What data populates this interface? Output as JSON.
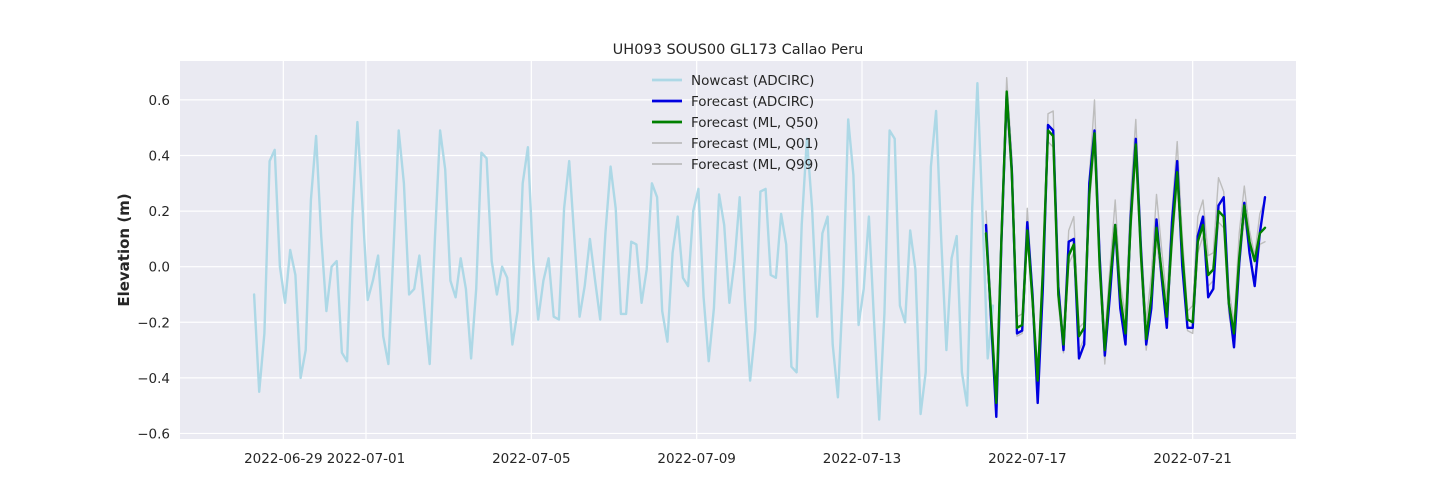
{
  "chart_data": {
    "type": "line",
    "title": "UH093 SOUS00 GL173 Callao Peru",
    "xlabel": "",
    "ylabel": "Elevation (m)",
    "xlim": [
      "2022-06-26T12:00",
      "2022-07-23T12:00"
    ],
    "ylim": [
      -0.62,
      0.74
    ],
    "grid": true,
    "legend_position": "top-center",
    "xticks": [
      "2022-06-29",
      "2022-07-01",
      "2022-07-05",
      "2022-07-09",
      "2022-07-13",
      "2022-07-17",
      "2022-07-21"
    ],
    "yticks": [
      -0.6,
      -0.4,
      -0.2,
      0.0,
      0.2,
      0.4,
      0.6
    ],
    "ytick_labels": [
      "−0.6",
      "−0.4",
      "−0.2",
      "0.0",
      "0.2",
      "0.4",
      "0.6"
    ],
    "series": [
      {
        "name": "Nowcast (ADCIRC)",
        "color": "#add8e6",
        "width": 2.4,
        "start": "2022-06-28T07:00",
        "step_hours": 3,
        "values": [
          -0.1,
          -0.45,
          -0.24,
          0.38,
          0.42,
          0.0,
          -0.13,
          0.06,
          -0.03,
          -0.4,
          -0.3,
          0.24,
          0.47,
          0.11,
          -0.16,
          0.0,
          0.02,
          -0.31,
          -0.34,
          0.17,
          0.52,
          0.21,
          -0.12,
          -0.05,
          0.04,
          -0.25,
          -0.35,
          0.07,
          0.49,
          0.3,
          -0.1,
          -0.08,
          0.04,
          -0.16,
          -0.35,
          0.1,
          0.49,
          0.35,
          -0.05,
          -0.11,
          0.03,
          -0.08,
          -0.33,
          -0.08,
          0.41,
          0.39,
          0.02,
          -0.1,
          0.0,
          -0.04,
          -0.28,
          -0.16,
          0.3,
          0.43,
          0.02,
          -0.19,
          -0.05,
          0.03,
          -0.18,
          -0.19,
          0.21,
          0.38,
          0.1,
          -0.18,
          -0.07,
          0.1,
          -0.05,
          -0.19,
          0.12,
          0.36,
          0.21,
          -0.17,
          -0.17,
          0.09,
          0.08,
          -0.13,
          -0.01,
          0.3,
          0.25,
          -0.16,
          -0.27,
          0.05,
          0.18,
          -0.04,
          -0.07,
          0.2,
          0.28,
          -0.11,
          -0.34,
          -0.15,
          0.26,
          0.15,
          -0.13,
          0.02,
          0.25,
          -0.12,
          -0.41,
          -0.23,
          0.27,
          0.28,
          -0.03,
          -0.04,
          0.19,
          0.08,
          -0.36,
          -0.38,
          0.15,
          0.46,
          0.21,
          -0.18,
          0.12,
          0.18,
          -0.28,
          -0.47,
          -0.07,
          0.53,
          0.33,
          -0.21,
          -0.08,
          0.18,
          -0.2,
          -0.55,
          -0.17,
          0.49,
          0.46,
          -0.14,
          -0.2,
          0.13,
          -0.01,
          -0.53,
          -0.38,
          0.36,
          0.56,
          0.1,
          -0.3,
          0.03,
          0.11,
          -0.38,
          -0.5,
          0.21,
          0.66,
          0.18,
          -0.33,
          -0.14
        ]
      },
      {
        "name": "Forecast (ADCIRC)",
        "color": "#0000e0",
        "width": 2.4,
        "start": "2022-07-16T00:00",
        "step_hours": 3,
        "values": [
          0.15,
          -0.2,
          -0.54,
          0.1,
          0.62,
          0.35,
          -0.24,
          -0.23,
          0.16,
          -0.1,
          -0.49,
          -0.08,
          0.51,
          0.49,
          -0.07,
          -0.3,
          0.09,
          0.1,
          -0.33,
          -0.28,
          0.3,
          0.49,
          0.03,
          -0.32,
          -0.1,
          0.15,
          -0.15,
          -0.28,
          0.18,
          0.46,
          0.06,
          -0.28,
          -0.15,
          0.17,
          -0.04,
          -0.22,
          0.16,
          0.38,
          0.0,
          -0.22,
          -0.22,
          0.11,
          0.18,
          -0.11,
          -0.08,
          0.22,
          0.25,
          -0.13,
          -0.29,
          0.01,
          0.23,
          0.05,
          -0.07,
          0.12,
          0.25
        ]
      },
      {
        "name": "Forecast (ML, Q50)",
        "color": "#008000",
        "width": 2.4,
        "start": "2022-07-16T00:00",
        "step_hours": 3,
        "values": [
          0.12,
          -0.18,
          -0.49,
          0.11,
          0.63,
          0.34,
          -0.22,
          -0.21,
          0.13,
          -0.12,
          -0.41,
          -0.02,
          0.49,
          0.47,
          -0.1,
          -0.28,
          0.04,
          0.08,
          -0.25,
          -0.22,
          0.26,
          0.48,
          0.0,
          -0.3,
          -0.06,
          0.15,
          -0.11,
          -0.24,
          0.16,
          0.44,
          0.04,
          -0.26,
          -0.11,
          0.14,
          -0.02,
          -0.18,
          0.11,
          0.34,
          0.05,
          -0.19,
          -0.2,
          0.09,
          0.15,
          -0.03,
          -0.01,
          0.2,
          0.18,
          -0.13,
          -0.24,
          0.03,
          0.22,
          0.09,
          0.02,
          0.12,
          0.14
        ]
      },
      {
        "name": "Forecast (ML, Q01)",
        "color": "#bdbdbd",
        "width": 1.4,
        "start": "2022-07-16T00:00",
        "step_hours": 3,
        "values": [
          0.1,
          -0.22,
          -0.52,
          0.08,
          0.58,
          0.3,
          -0.25,
          -0.24,
          0.1,
          -0.14,
          -0.45,
          -0.05,
          0.45,
          0.43,
          -0.13,
          -0.31,
          0.01,
          0.05,
          -0.3,
          -0.26,
          0.22,
          0.44,
          -0.03,
          -0.35,
          -0.1,
          0.11,
          -0.15,
          -0.28,
          0.12,
          0.4,
          0.0,
          -0.3,
          -0.15,
          0.1,
          -0.06,
          -0.22,
          0.07,
          0.3,
          0.01,
          -0.23,
          -0.24,
          0.05,
          0.11,
          -0.07,
          -0.05,
          0.16,
          0.14,
          -0.17,
          -0.28,
          -0.01,
          0.18,
          0.05,
          -0.05,
          0.08,
          0.09
        ]
      },
      {
        "name": "Forecast (ML, Q99)",
        "color": "#bdbdbd",
        "width": 1.4,
        "start": "2022-07-16T00:00",
        "step_hours": 3,
        "values": [
          0.2,
          -0.14,
          -0.46,
          0.16,
          0.68,
          0.4,
          -0.18,
          -0.17,
          0.21,
          -0.08,
          -0.38,
          0.02,
          0.55,
          0.56,
          -0.06,
          -0.25,
          0.13,
          0.18,
          -0.22,
          -0.2,
          0.32,
          0.6,
          0.06,
          -0.25,
          0.0,
          0.24,
          -0.06,
          -0.18,
          0.26,
          0.53,
          0.1,
          -0.2,
          -0.03,
          0.26,
          0.06,
          -0.12,
          0.2,
          0.45,
          0.11,
          -0.16,
          -0.14,
          0.18,
          0.24,
          0.04,
          0.05,
          0.32,
          0.27,
          -0.08,
          -0.2,
          0.12,
          0.29,
          0.13,
          0.04,
          0.19,
          0.24
        ]
      }
    ]
  }
}
